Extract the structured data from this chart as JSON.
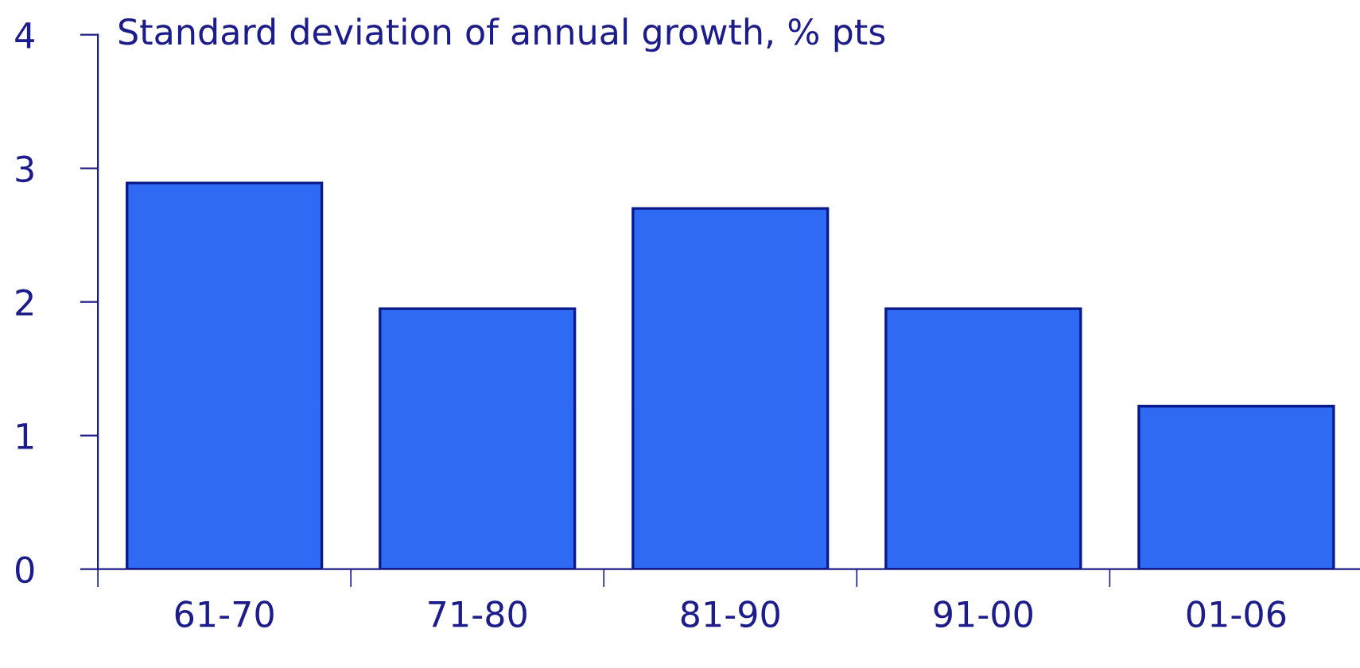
{
  "chart_data": {
    "type": "bar",
    "title": "Standard deviation of annual growth, % pts",
    "categories": [
      "61-70",
      "71-80",
      "81-90",
      "91-00",
      "01-06"
    ],
    "values": [
      2.89,
      1.95,
      2.7,
      1.95,
      1.22
    ],
    "color": "#2f6af5",
    "ylim": [
      0,
      4
    ],
    "yticks": [
      0,
      1,
      2,
      3,
      4
    ],
    "grid": false,
    "legend": false
  }
}
